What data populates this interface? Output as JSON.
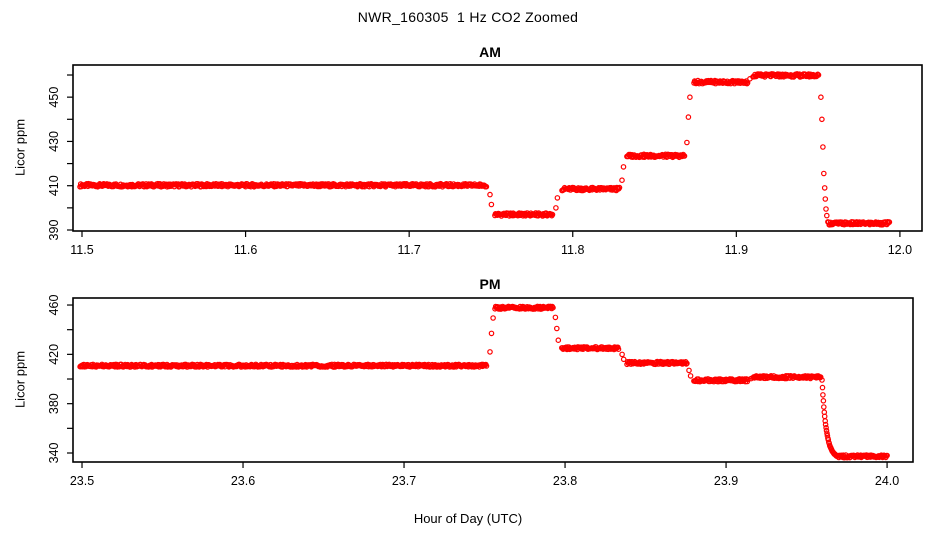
{
  "title": "NWR_160305  1 Hz CO2 Zoomed",
  "xlabel": "Hour of Day (UTC)",
  "point_color": "#FF0000",
  "chart_data": [
    {
      "type": "scatter",
      "panel": "AM",
      "ylabel": "Licor ppm",
      "marker": "open-circle",
      "color": "#FF0000",
      "grid": false,
      "xlim": [
        11.4945,
        12.0135
      ],
      "ylim": [
        389.55,
        464.52
      ],
      "xticks": [
        [
          11.5,
          "11.5"
        ],
        [
          11.6,
          "11.6"
        ],
        [
          11.7,
          "11.7"
        ],
        [
          11.8,
          "11.8"
        ],
        [
          11.9,
          "11.9"
        ],
        [
          12.0,
          "12.0"
        ]
      ],
      "yticks": [
        [
          390,
          "390"
        ],
        [
          400,
          ""
        ],
        [
          410,
          "410"
        ],
        [
          420,
          ""
        ],
        [
          430,
          "430"
        ],
        [
          440,
          ""
        ],
        [
          450,
          "450"
        ],
        [
          460,
          ""
        ]
      ],
      "noise_ppm": 0.7,
      "sample_step_hr": 0.0004,
      "segments": [
        [
          11.4988,
          11.7476,
          410.2
        ],
        [
          11.7524,
          11.7879,
          397.0
        ],
        [
          11.7934,
          11.8289,
          408.5
        ],
        [
          11.8331,
          11.8686,
          423.5
        ],
        [
          11.8741,
          11.9071,
          456.8
        ],
        [
          11.9102,
          11.9505,
          459.8
        ],
        [
          11.956,
          11.9938,
          393.0
        ]
      ],
      "ramps": [],
      "transition_points": [
        [
          11.7494,
          406.0
        ],
        [
          11.7503,
          401.5
        ],
        [
          11.7897,
          400.0
        ],
        [
          11.7906,
          404.5
        ],
        [
          11.8301,
          412.5
        ],
        [
          11.831,
          418.5
        ],
        [
          11.8698,
          429.5
        ],
        [
          11.8707,
          441.0
        ],
        [
          11.8716,
          450.0
        ],
        [
          11.9083,
          458.3
        ],
        [
          11.9517,
          450.0
        ],
        [
          11.9523,
          440.0
        ],
        [
          11.9529,
          427.5
        ],
        [
          11.9535,
          415.5
        ],
        [
          11.954,
          409.0
        ],
        [
          11.9544,
          404.0
        ],
        [
          11.9548,
          399.5
        ],
        [
          11.9553,
          396.5
        ]
      ]
    },
    {
      "type": "scatter",
      "panel": "PM",
      "ylabel": "Licor ppm",
      "marker": "open-circle",
      "color": "#FF0000",
      "grid": false,
      "xlim": [
        23.4944,
        24.0161
      ],
      "ylim": [
        332.7,
        465.7
      ],
      "xticks": [
        [
          23.5,
          "23.5"
        ],
        [
          23.6,
          "23.6"
        ],
        [
          23.7,
          "23.7"
        ],
        [
          23.8,
          "23.8"
        ],
        [
          23.9,
          "23.9"
        ],
        [
          24.0,
          "24.0"
        ]
      ],
      "yticks": [
        [
          340,
          "340"
        ],
        [
          360,
          ""
        ],
        [
          380,
          "380"
        ],
        [
          400,
          ""
        ],
        [
          420,
          "420"
        ],
        [
          440,
          ""
        ],
        [
          460,
          "460"
        ]
      ],
      "noise_ppm": 1.1,
      "sample_step_hr": 0.0004,
      "segments": [
        [
          23.4988,
          23.7515,
          410.8
        ],
        [
          23.7565,
          23.7926,
          457.8
        ],
        [
          23.798,
          23.8335,
          425.0
        ],
        [
          23.8385,
          23.8758,
          413.0
        ],
        [
          23.88,
          23.9137,
          399.0
        ],
        [
          23.9168,
          23.959,
          401.5
        ],
        [
          23.9696,
          24.0,
          337.3
        ]
      ],
      "ramps": [
        [
          23.9596,
          23.969,
          399.0,
          337.5,
          3.5
        ]
      ],
      "transition_points": [
        [
          23.7534,
          422.0
        ],
        [
          23.7543,
          437.0
        ],
        [
          23.7553,
          449.5
        ],
        [
          23.794,
          450.0
        ],
        [
          23.7949,
          441.0
        ],
        [
          23.7958,
          431.5
        ],
        [
          23.8354,
          420.0
        ],
        [
          23.8364,
          416.0
        ],
        [
          23.877,
          407.0
        ],
        [
          23.878,
          402.5
        ],
        [
          23.9155,
          400.3
        ]
      ]
    }
  ]
}
